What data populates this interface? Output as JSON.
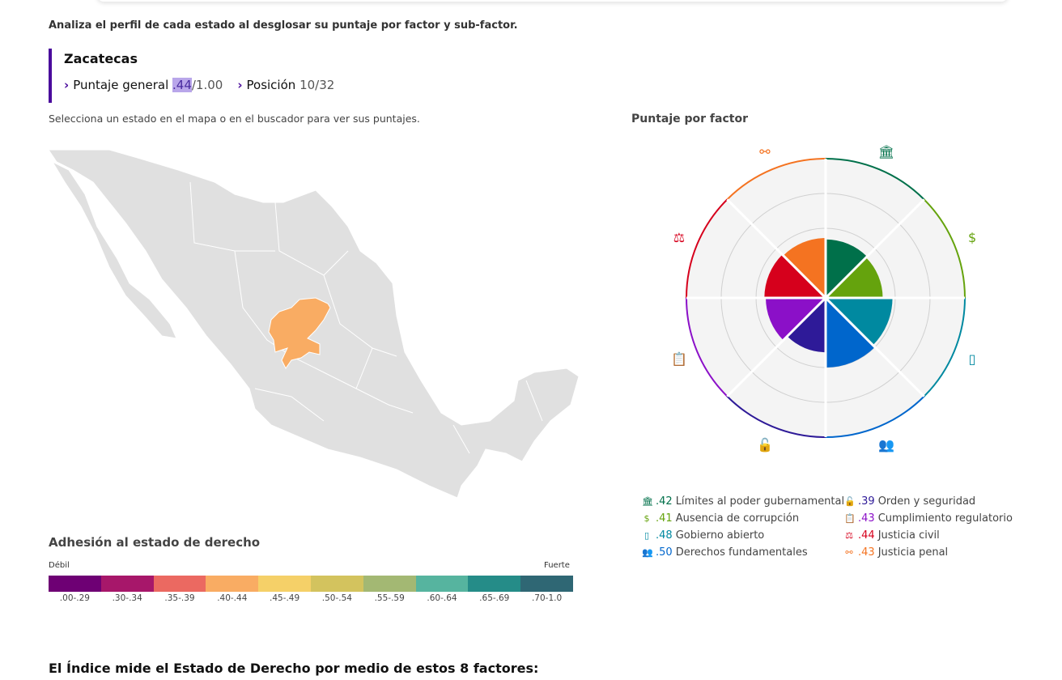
{
  "intro": "Analiza el perfil de cada estado al desglosar su puntaje por factor y sub-factor.",
  "state": {
    "name": "Zacatecas",
    "score_label": "Puntaje general",
    "score": ".44",
    "score_max": "/1.00",
    "position_label": "Posición",
    "position": "10/32"
  },
  "hint": "Selecciona un estado en el mapa o en el buscador para ver sus puntajes.",
  "map": {
    "selected_state": "Zacatecas",
    "selected_color": "#f9ac63",
    "base_color": "#e0e0e0"
  },
  "legend": {
    "title": "Adhesión al estado de derecho",
    "low": "Débil",
    "high": "Fuerte",
    "bins": [
      {
        "label": ".00-.29",
        "color": "#6e0074"
      },
      {
        "label": ".30-.34",
        "color": "#a7176a"
      },
      {
        "label": ".35-.39",
        "color": "#eb6961"
      },
      {
        "label": ".40-.44",
        "color": "#f9ac63"
      },
      {
        "label": ".45-.49",
        "color": "#f5d068"
      },
      {
        "label": ".50-.54",
        "color": "#d3c35e"
      },
      {
        "label": ".55-.59",
        "color": "#a3b873"
      },
      {
        "label": ".60-.64",
        "color": "#56b49f"
      },
      {
        "label": ".65-.69",
        "color": "#258c88"
      },
      {
        "label": ".70-1.0",
        "color": "#2f6774"
      }
    ]
  },
  "chart_data": {
    "type": "radial-bar",
    "title": "Puntaje por factor",
    "rlim": [
      0,
      1
    ],
    "factors": [
      {
        "name": "Límites al poder gubernamental",
        "value": 0.42,
        "label": ".42",
        "color": "#00704a",
        "icon": "government-building-icon"
      },
      {
        "name": "Ausencia de corrupción",
        "value": 0.41,
        "label": ".41",
        "color": "#65a30d",
        "icon": "money-bag-icon"
      },
      {
        "name": "Gobierno abierto",
        "value": 0.48,
        "label": ".48",
        "color": "#0089a0",
        "icon": "open-door-icon"
      },
      {
        "name": "Derechos fundamentales",
        "value": 0.5,
        "label": ".50",
        "color": "#0066cc",
        "icon": "people-icon"
      },
      {
        "name": "Orden y seguridad",
        "value": 0.39,
        "label": ".39",
        "color": "#2e1a98",
        "icon": "padlock-icon"
      },
      {
        "name": "Cumplimiento regulatorio",
        "value": 0.43,
        "label": ".43",
        "color": "#8b10c8",
        "icon": "clipboard-icon"
      },
      {
        "name": "Justicia civil",
        "value": 0.44,
        "label": ".44",
        "color": "#d6001c",
        "icon": "scales-icon"
      },
      {
        "name": "Justicia penal",
        "value": 0.43,
        "label": ".43",
        "color": "#f47321",
        "icon": "handcuffs-icon"
      }
    ]
  },
  "bottom_title": "El Índice mide el Estado de Derecho por medio de estos 8 factores:"
}
